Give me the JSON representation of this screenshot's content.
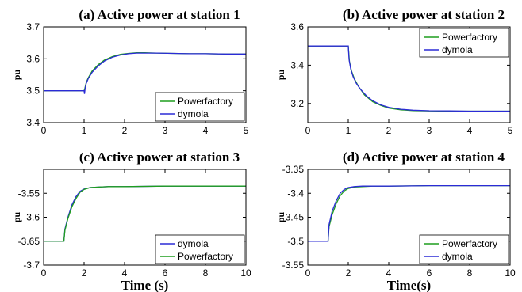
{
  "colors": {
    "Powerfactory": "#1e9e1e",
    "dymola": "#2b2bd6"
  },
  "chart_data": [
    {
      "type": "line",
      "title": "(a) Active power at station 1",
      "ylabel": "pu",
      "xlabel": "",
      "xlim": [
        0,
        5
      ],
      "ylim": [
        3.4,
        3.7
      ],
      "xticks": [
        0,
        1,
        2,
        3,
        4,
        5
      ],
      "yticks": [
        3.4,
        3.5,
        3.6,
        3.7
      ],
      "ytick_labels": [
        "3.4",
        "3.5",
        "3.6",
        "3.7"
      ],
      "legend": "bottom-right",
      "legend_entries": [
        "Powerfactory",
        "dymola"
      ],
      "series": [
        {
          "name": "Powerfactory",
          "color": "#1e9e1e",
          "x": [
            0,
            1,
            1.02,
            1.05,
            1.1,
            1.2,
            1.35,
            1.5,
            1.7,
            1.9,
            2.1,
            2.3,
            2.5,
            2.8,
            3.2,
            3.6,
            4.0,
            4.5,
            5
          ],
          "y": [
            3.5,
            3.5,
            3.508,
            3.525,
            3.54,
            3.562,
            3.582,
            3.596,
            3.607,
            3.614,
            3.617,
            3.619,
            3.619,
            3.618,
            3.617,
            3.616,
            3.616,
            3.615,
            3.615
          ]
        },
        {
          "name": "dymola",
          "color": "#2b2bd6",
          "x": [
            0,
            1,
            1.01,
            1.03,
            1.05,
            1.1,
            1.2,
            1.35,
            1.5,
            1.7,
            1.9,
            2.1,
            2.3,
            2.5,
            2.8,
            3.2,
            3.6,
            4.0,
            4.5,
            5
          ],
          "y": [
            3.5,
            3.5,
            3.49,
            3.51,
            3.522,
            3.537,
            3.558,
            3.578,
            3.593,
            3.605,
            3.612,
            3.616,
            3.618,
            3.618,
            3.618,
            3.617,
            3.616,
            3.616,
            3.615,
            3.615
          ]
        }
      ]
    },
    {
      "type": "line",
      "title": "(b) Active power at station 2",
      "ylabel": "pu",
      "xlabel": "",
      "xlim": [
        0,
        5
      ],
      "ylim": [
        3.1,
        3.6
      ],
      "xticks": [
        0,
        1,
        2,
        3,
        4,
        5
      ],
      "yticks": [
        3.2,
        3.4,
        3.6
      ],
      "ytick_labels": [
        "3.2",
        "3.4",
        "3.6"
      ],
      "legend": "top-right",
      "legend_entries": [
        "Powerfactory",
        "dymola"
      ],
      "series": [
        {
          "name": "Powerfactory",
          "color": "#1e9e1e",
          "x": [
            0,
            1,
            1.03,
            1.08,
            1.15,
            1.25,
            1.4,
            1.6,
            1.8,
            2.0,
            2.3,
            2.6,
            3.0,
            3.5,
            4.0,
            4.5,
            5
          ],
          "y": [
            3.5,
            3.5,
            3.42,
            3.37,
            3.33,
            3.29,
            3.245,
            3.21,
            3.19,
            3.176,
            3.167,
            3.163,
            3.161,
            3.16,
            3.16,
            3.16,
            3.16
          ]
        },
        {
          "name": "dymola",
          "color": "#2b2bd6",
          "x": [
            0,
            1,
            1.02,
            1.06,
            1.12,
            1.2,
            1.3,
            1.45,
            1.6,
            1.8,
            2.0,
            2.3,
            2.6,
            3.0,
            3.5,
            4.0,
            4.5,
            5
          ],
          "y": [
            3.5,
            3.5,
            3.43,
            3.38,
            3.34,
            3.305,
            3.275,
            3.24,
            3.215,
            3.193,
            3.18,
            3.17,
            3.165,
            3.162,
            3.161,
            3.16,
            3.16,
            3.16
          ]
        }
      ]
    },
    {
      "type": "line",
      "title": "(c) Active power at station 3",
      "ylabel": "pu",
      "xlabel": "Time (s)",
      "xlim": [
        0,
        10
      ],
      "ylim": [
        -3.7,
        -3.5
      ],
      "xticks": [
        0,
        2,
        4,
        6,
        8,
        10
      ],
      "yticks": [
        -3.7,
        -3.65,
        -3.6,
        -3.55
      ],
      "ytick_labels": [
        "-3.7",
        "-3.65",
        "-3.6",
        "-3.55"
      ],
      "legend": "bottom-right",
      "legend_entries": [
        "dymola",
        "Powerfactory"
      ],
      "series": [
        {
          "name": "dymola",
          "color": "#2b2bd6",
          "x": [
            0,
            1,
            1.05,
            1.2,
            1.4,
            1.6,
            1.8,
            2.0,
            2.3,
            2.7,
            3.2,
            4,
            6,
            8,
            10
          ],
          "y": [
            -3.65,
            -3.65,
            -3.625,
            -3.6,
            -3.574,
            -3.557,
            -3.546,
            -3.541,
            -3.538,
            -3.537,
            -3.536,
            -3.536,
            -3.535,
            -3.535,
            -3.535
          ]
        },
        {
          "name": "Powerfactory",
          "color": "#1e9e1e",
          "x": [
            0,
            1,
            1.05,
            1.2,
            1.4,
            1.6,
            1.8,
            2.0,
            2.3,
            2.7,
            3.2,
            4,
            6,
            8,
            10
          ],
          "y": [
            -3.65,
            -3.65,
            -3.628,
            -3.603,
            -3.578,
            -3.561,
            -3.548,
            -3.542,
            -3.538,
            -3.537,
            -3.536,
            -3.536,
            -3.535,
            -3.535,
            -3.535
          ]
        }
      ]
    },
    {
      "type": "line",
      "title": "(d) Active power at station 4",
      "ylabel": "pu",
      "xlabel": "Time(s)",
      "xlim": [
        0,
        10
      ],
      "ylim": [
        -3.55,
        -3.35
      ],
      "xticks": [
        0,
        2,
        4,
        6,
        8,
        10
      ],
      "yticks": [
        -3.55,
        -3.5,
        -3.45,
        -3.4,
        -3.35
      ],
      "ytick_labels": [
        "-3.55",
        "-3.5",
        "-3.45",
        "-3.4",
        "-3.35"
      ],
      "legend": "bottom-right",
      "legend_entries": [
        "Powerfactory",
        "dymola"
      ],
      "series": [
        {
          "name": "Powerfactory",
          "color": "#1e9e1e",
          "x": [
            0,
            1,
            1.05,
            1.2,
            1.4,
            1.6,
            1.8,
            2.0,
            2.3,
            2.7,
            3.2,
            4,
            6,
            8,
            10
          ],
          "y": [
            -3.5,
            -3.5,
            -3.47,
            -3.445,
            -3.422,
            -3.405,
            -3.395,
            -3.39,
            -3.387,
            -3.386,
            -3.385,
            -3.385,
            -3.384,
            -3.384,
            -3.384
          ]
        },
        {
          "name": "dymola",
          "color": "#2b2bd6",
          "x": [
            0,
            1,
            1.05,
            1.2,
            1.4,
            1.6,
            1.8,
            2.0,
            2.3,
            2.7,
            3.2,
            4,
            6,
            8,
            10
          ],
          "y": [
            -3.5,
            -3.5,
            -3.465,
            -3.438,
            -3.416,
            -3.4,
            -3.392,
            -3.388,
            -3.386,
            -3.385,
            -3.385,
            -3.385,
            -3.384,
            -3.384,
            -3.384
          ]
        }
      ]
    }
  ]
}
